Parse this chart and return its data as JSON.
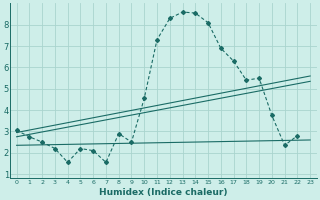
{
  "xlabel": "Humidex (Indice chaleur)",
  "background_color": "#ceeee9",
  "grid_color": "#aad4ce",
  "line_color": "#1a6b65",
  "xlim": [
    -0.5,
    23.5
  ],
  "ylim": [
    0.8,
    9.0
  ],
  "xticks": [
    0,
    1,
    2,
    3,
    4,
    5,
    6,
    7,
    8,
    9,
    10,
    11,
    12,
    13,
    14,
    15,
    16,
    17,
    18,
    19,
    20,
    21,
    22,
    23
  ],
  "yticks": [
    1,
    2,
    3,
    4,
    5,
    6,
    7,
    8
  ],
  "series1_x": [
    0,
    1,
    2,
    3,
    4,
    5,
    6,
    7,
    8,
    9,
    10,
    11,
    12,
    13,
    14,
    15,
    16,
    17,
    18,
    19,
    20,
    21,
    22
  ],
  "series1_y": [
    3.05,
    2.75,
    2.5,
    2.2,
    1.55,
    2.2,
    2.1,
    1.55,
    2.9,
    2.5,
    4.55,
    7.3,
    8.3,
    8.6,
    8.55,
    8.1,
    6.9,
    6.3,
    5.4,
    5.5,
    3.75,
    2.35,
    2.8
  ],
  "series2_x": [
    0,
    23
  ],
  "series2_y": [
    2.95,
    5.6
  ],
  "series3_x": [
    0,
    23
  ],
  "series3_y": [
    2.75,
    5.35
  ],
  "series4_x": [
    0,
    23
  ],
  "series4_y": [
    2.35,
    2.6
  ]
}
